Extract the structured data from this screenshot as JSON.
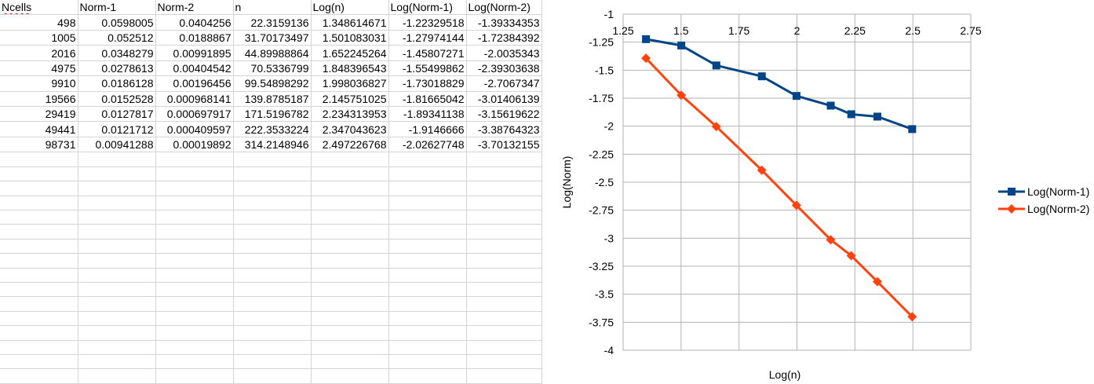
{
  "spreadsheet": {
    "columns": [
      "Ncells",
      "Norm-1",
      "Norm-2",
      "n",
      "Log(n)",
      "Log(Norm-1)",
      "Log(Norm-2)"
    ],
    "rows": [
      [
        "498",
        "0.0598005",
        "0.0404256",
        "22.3159136",
        "1.348614671",
        "-1.22329518",
        "-1.39334353"
      ],
      [
        "1005",
        "0.052512",
        "0.0188867",
        "31.70173497",
        "1.501083031",
        "-1.27974144",
        "-1.72384392"
      ],
      [
        "2016",
        "0.0348279",
        "0.00991895",
        "44.89988864",
        "1.652245264",
        "-1.45807271",
        "-2.0035343"
      ],
      [
        "4975",
        "0.0278613",
        "0.00404542",
        "70.5336799",
        "1.848396543",
        "-1.55499862",
        "-2.39303638"
      ],
      [
        "9910",
        "0.0186128",
        "0.00196456",
        "99.54898292",
        "1.998036827",
        "-1.73018829",
        "-2.7067347"
      ],
      [
        "19566",
        "0.0152528",
        "0.000968141",
        "139.8785187",
        "2.145751025",
        "-1.81665042",
        "-3.01406139"
      ],
      [
        "29419",
        "0.0127817",
        "0.000697917",
        "171.5196782",
        "2.234313953",
        "-1.89341138",
        "-3.15619622"
      ],
      [
        "49441",
        "0.0121712",
        "0.000409597",
        "222.3533224",
        "2.347043623",
        "-1.9146666",
        "-3.38764323"
      ],
      [
        "98731",
        "0.00941288",
        "0.00019892",
        "314.2148946",
        "2.497226768",
        "-2.02627748",
        "-3.70132155"
      ]
    ]
  },
  "chart_data": {
    "type": "line",
    "xlabel": "Log(n)",
    "ylabel": "Log(Norm)",
    "xlim": [
      1.25,
      2.75
    ],
    "ylim": [
      -4,
      -1
    ],
    "xticks": [
      "1.25",
      "1.5",
      "1.75",
      "2",
      "2.25",
      "2.5",
      "2.75"
    ],
    "yticks": [
      "-1",
      "-1.25",
      "-1.5",
      "-1.75",
      "-2",
      "-2.25",
      "-2.5",
      "-2.75",
      "-3",
      "-3.25",
      "-3.5",
      "-3.75",
      "-4"
    ],
    "x_axis_position": "top",
    "grid": true,
    "legend": "right",
    "x": [
      1.348614671,
      1.501083031,
      1.652245264,
      1.848396543,
      1.998036827,
      2.145751025,
      2.234313953,
      2.347043623,
      2.497226768
    ],
    "series": [
      {
        "name": "Log(Norm-1)",
        "color": "#004586",
        "marker": "square",
        "values": [
          -1.22329518,
          -1.27974144,
          -1.45807271,
          -1.55499862,
          -1.73018829,
          -1.81665042,
          -1.89341138,
          -1.9146666,
          -2.02627748
        ]
      },
      {
        "name": "Log(Norm-2)",
        "color": "#ff420e",
        "marker": "diamond",
        "values": [
          -1.39334353,
          -1.72384392,
          -2.0035343,
          -2.39303638,
          -2.7067347,
          -3.01406139,
          -3.15619622,
          -3.38764323,
          -3.70132155
        ]
      }
    ]
  }
}
